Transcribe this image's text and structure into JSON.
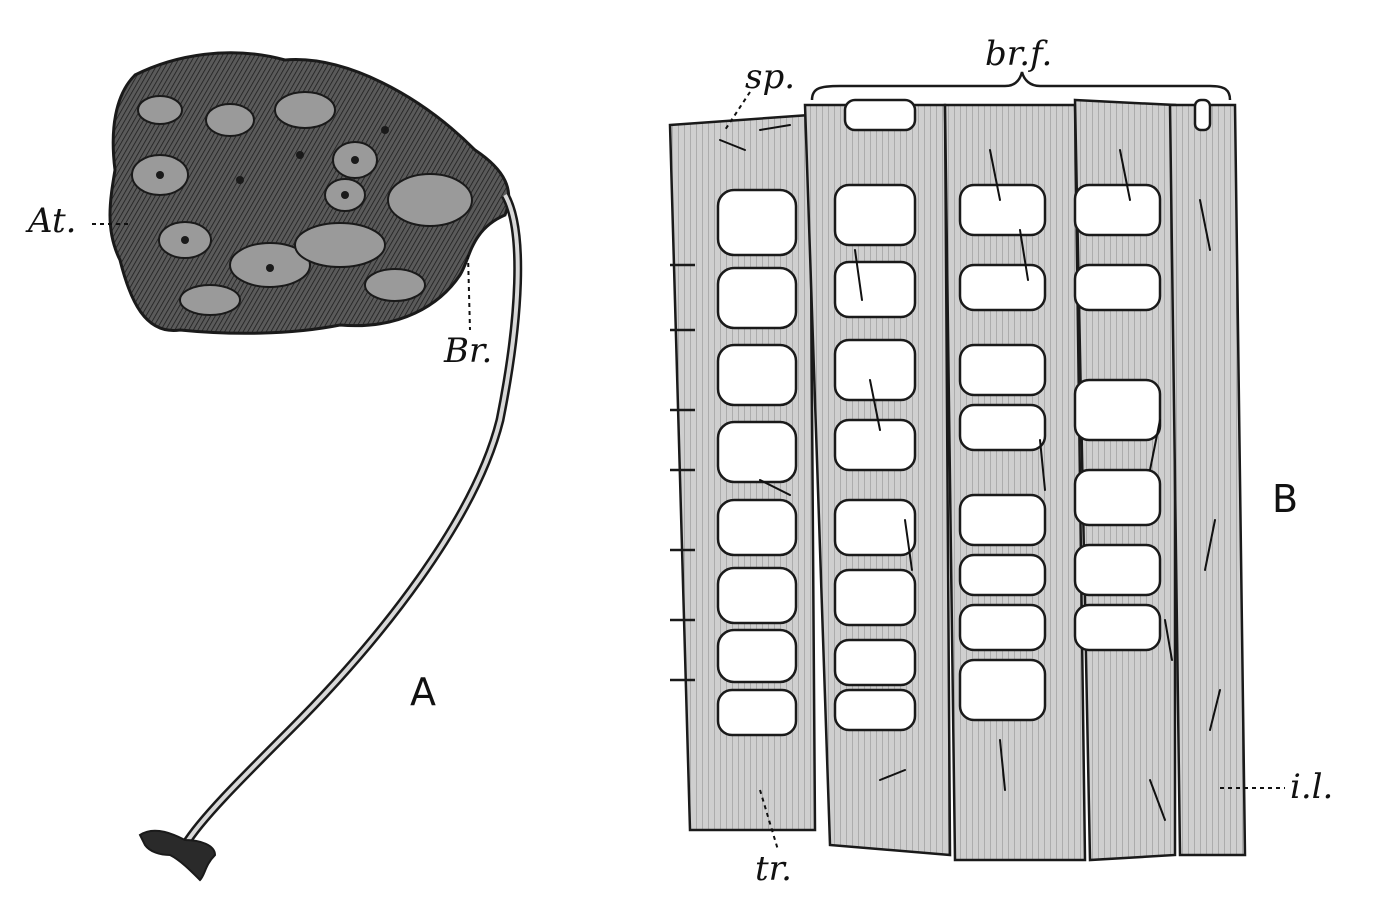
{
  "labels": {
    "at": "At.",
    "br": "Br.",
    "panel_a": "A",
    "sp": "sp.",
    "brf": "br.f.",
    "panel_b": "B",
    "il": "i.l.",
    "tr": "tr."
  },
  "colors": {
    "ink": "#1a1a1a",
    "tissue_fill": "#c9c9c9",
    "mass_dark": "#3a3a3a",
    "mass_mid": "#7a7a7a",
    "background": "#ffffff"
  }
}
